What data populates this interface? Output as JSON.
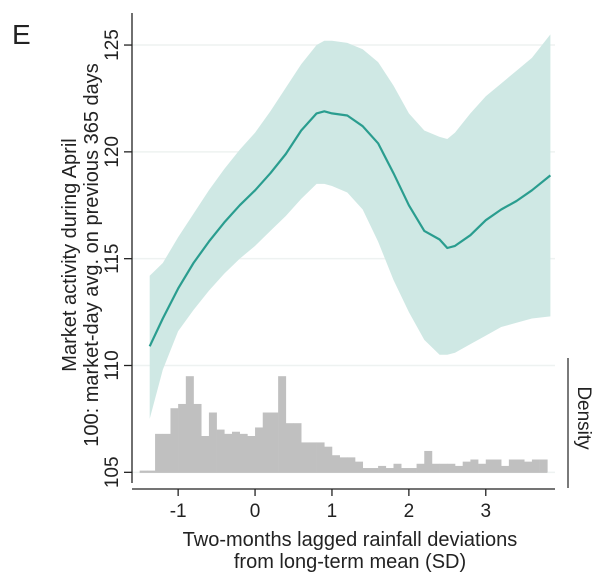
{
  "panel_label": "E",
  "colors": {
    "line": "#2a9d8f",
    "band": "#cfe8e4",
    "bars": "#c0c0c0",
    "grid": "#eef2f1",
    "axis": "#222222"
  },
  "chart_data": {
    "type": "line",
    "title": "",
    "xlabel_lines": [
      "Two-months lagged rainfall deviations",
      "from long-term mean (SD)"
    ],
    "ylabel_lines": [
      "Market activity during April",
      "100: market-day avg. on previous 365 days"
    ],
    "density_label": "Density",
    "xlim": [
      -1.6,
      3.9
    ],
    "ylim": [
      104.5,
      126.5
    ],
    "xticks": [
      -1,
      0,
      1,
      2,
      3
    ],
    "xtick_labels": [
      "-1",
      "0",
      "1",
      "2",
      "3"
    ],
    "yticks": [
      105,
      110,
      115,
      120,
      125
    ],
    "ytick_labels": [
      "105",
      "110",
      "115",
      "120",
      "125"
    ],
    "grid": true,
    "series": [
      {
        "kind": "fit",
        "x": [
          -1.37,
          -1.2,
          -1.0,
          -0.8,
          -0.6,
          -0.4,
          -0.2,
          0.0,
          0.2,
          0.4,
          0.6,
          0.8,
          0.9,
          1.0,
          1.2,
          1.4,
          1.6,
          1.8,
          2.0,
          2.2,
          2.4,
          2.5,
          2.6,
          2.8,
          3.0,
          3.2,
          3.4,
          3.6,
          3.84
        ],
        "y": [
          110.9,
          112.2,
          113.6,
          114.8,
          115.8,
          116.7,
          117.5,
          118.2,
          119.0,
          119.9,
          121.0,
          121.8,
          121.9,
          121.8,
          121.7,
          121.2,
          120.4,
          119.0,
          117.5,
          116.3,
          115.9,
          115.5,
          115.6,
          116.1,
          116.8,
          117.3,
          117.7,
          118.2,
          118.9
        ]
      },
      {
        "kind": "confidence-interval",
        "x": [
          -1.37,
          -1.2,
          -1.0,
          -0.8,
          -0.6,
          -0.4,
          -0.2,
          0.0,
          0.2,
          0.4,
          0.6,
          0.8,
          0.9,
          1.0,
          1.2,
          1.4,
          1.6,
          1.8,
          2.0,
          2.2,
          2.4,
          2.5,
          2.6,
          2.8,
          3.0,
          3.2,
          3.4,
          3.6,
          3.84
        ],
        "lower": [
          107.5,
          109.8,
          111.6,
          112.6,
          113.5,
          114.3,
          115.0,
          115.6,
          116.3,
          117.0,
          117.8,
          118.5,
          118.5,
          118.4,
          118.1,
          117.3,
          115.8,
          114.0,
          112.5,
          111.2,
          110.5,
          110.5,
          110.6,
          111.0,
          111.4,
          111.8,
          112.0,
          112.2,
          112.3
        ],
        "upper": [
          114.2,
          114.8,
          116.0,
          117.1,
          118.2,
          119.2,
          120.1,
          120.9,
          121.9,
          123.0,
          124.1,
          125.0,
          125.2,
          125.2,
          125.1,
          124.8,
          124.2,
          123.1,
          121.8,
          121.0,
          120.7,
          120.6,
          120.9,
          121.8,
          122.6,
          123.2,
          123.8,
          124.4,
          125.5
        ]
      }
    ],
    "density_bins": [
      {
        "x0": -1.5,
        "x1": -1.4,
        "y": 105.08
      },
      {
        "x0": -1.4,
        "x1": -1.3,
        "y": 105.08
      },
      {
        "x0": -1.3,
        "x1": -1.2,
        "y": 106.8
      },
      {
        "x0": -1.2,
        "x1": -1.1,
        "y": 106.8
      },
      {
        "x0": -1.1,
        "x1": -1.0,
        "y": 108.0
      },
      {
        "x0": -1.0,
        "x1": -0.9,
        "y": 108.2
      },
      {
        "x0": -0.9,
        "x1": -0.8,
        "y": 109.5
      },
      {
        "x0": -0.8,
        "x1": -0.7,
        "y": 108.2
      },
      {
        "x0": -0.7,
        "x1": -0.6,
        "y": 106.7
      },
      {
        "x0": -0.6,
        "x1": -0.5,
        "y": 107.8
      },
      {
        "x0": -0.5,
        "x1": -0.4,
        "y": 107.0
      },
      {
        "x0": -0.4,
        "x1": -0.3,
        "y": 106.8
      },
      {
        "x0": -0.3,
        "x1": -0.2,
        "y": 106.9
      },
      {
        "x0": -0.2,
        "x1": -0.1,
        "y": 106.8
      },
      {
        "x0": -0.1,
        "x1": 0.0,
        "y": 106.7
      },
      {
        "x0": 0.0,
        "x1": 0.1,
        "y": 107.1
      },
      {
        "x0": 0.1,
        "x1": 0.2,
        "y": 107.8
      },
      {
        "x0": 0.2,
        "x1": 0.3,
        "y": 107.8
      },
      {
        "x0": 0.3,
        "x1": 0.4,
        "y": 109.5
      },
      {
        "x0": 0.4,
        "x1": 0.5,
        "y": 107.3
      },
      {
        "x0": 0.5,
        "x1": 0.6,
        "y": 107.3
      },
      {
        "x0": 0.6,
        "x1": 0.7,
        "y": 106.4
      },
      {
        "x0": 0.7,
        "x1": 0.8,
        "y": 106.4
      },
      {
        "x0": 0.8,
        "x1": 0.9,
        "y": 106.4
      },
      {
        "x0": 0.9,
        "x1": 1.0,
        "y": 106.2
      },
      {
        "x0": 1.0,
        "x1": 1.1,
        "y": 105.8
      },
      {
        "x0": 1.1,
        "x1": 1.2,
        "y": 105.7
      },
      {
        "x0": 1.2,
        "x1": 1.3,
        "y": 105.7
      },
      {
        "x0": 1.3,
        "x1": 1.4,
        "y": 105.5
      },
      {
        "x0": 1.4,
        "x1": 1.5,
        "y": 105.2
      },
      {
        "x0": 1.5,
        "x1": 1.6,
        "y": 105.2
      },
      {
        "x0": 1.6,
        "x1": 1.7,
        "y": 105.3
      },
      {
        "x0": 1.7,
        "x1": 1.8,
        "y": 105.2
      },
      {
        "x0": 1.8,
        "x1": 1.9,
        "y": 105.4
      },
      {
        "x0": 1.9,
        "x1": 2.0,
        "y": 105.2
      },
      {
        "x0": 2.0,
        "x1": 2.1,
        "y": 105.2
      },
      {
        "x0": 2.1,
        "x1": 2.2,
        "y": 105.4
      },
      {
        "x0": 2.2,
        "x1": 2.3,
        "y": 106.0
      },
      {
        "x0": 2.3,
        "x1": 2.4,
        "y": 105.4
      },
      {
        "x0": 2.4,
        "x1": 2.5,
        "y": 105.4
      },
      {
        "x0": 2.5,
        "x1": 2.6,
        "y": 105.4
      },
      {
        "x0": 2.6,
        "x1": 2.7,
        "y": 105.3
      },
      {
        "x0": 2.7,
        "x1": 2.8,
        "y": 105.5
      },
      {
        "x0": 2.8,
        "x1": 2.9,
        "y": 105.6
      },
      {
        "x0": 2.9,
        "x1": 3.0,
        "y": 105.4
      },
      {
        "x0": 3.0,
        "x1": 3.1,
        "y": 105.6
      },
      {
        "x0": 3.1,
        "x1": 3.2,
        "y": 105.6
      },
      {
        "x0": 3.2,
        "x1": 3.3,
        "y": 105.3
      },
      {
        "x0": 3.3,
        "x1": 3.4,
        "y": 105.6
      },
      {
        "x0": 3.4,
        "x1": 3.5,
        "y": 105.6
      },
      {
        "x0": 3.5,
        "x1": 3.6,
        "y": 105.5
      },
      {
        "x0": 3.6,
        "x1": 3.7,
        "y": 105.6
      },
      {
        "x0": 3.7,
        "x1": 3.8,
        "y": 105.6
      }
    ]
  }
}
